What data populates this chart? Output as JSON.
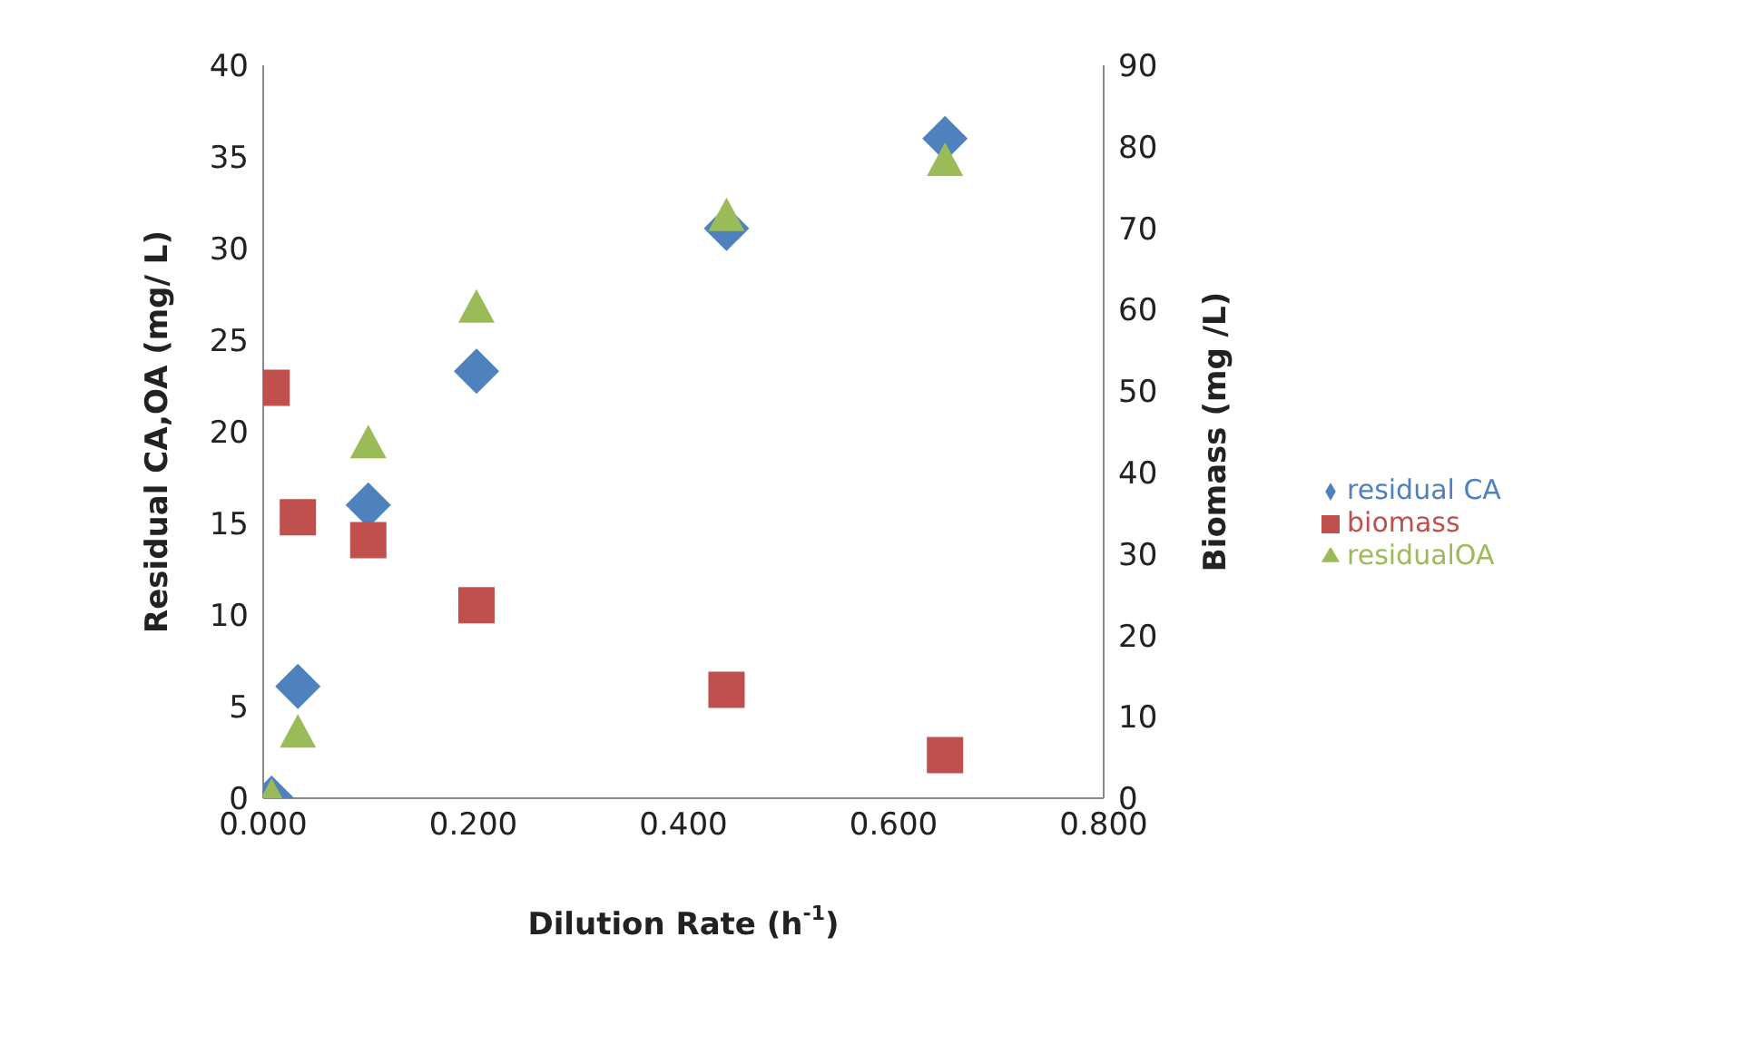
{
  "chart_data": {
    "type": "scatter",
    "xlabel": "Dilution Rate (h$^{-1}$)",
    "ylabel": "Residual CA,OA (mg/ L)",
    "y2label": "Biomass (mg /L)",
    "x": [
      0.008,
      0.033,
      0.1,
      0.203,
      0.441,
      0.649
    ],
    "series": [
      {
        "name": "residual CA",
        "color": "#4f81bd",
        "marker": "diamond",
        "values": [
          0,
          6.1,
          16.0,
          23.3,
          31.1,
          36.0
        ]
      },
      {
        "name": "biomass",
        "color": "#c0504d",
        "marker": "square",
        "axis": "y2",
        "values": [
          50.4,
          34.5,
          31.7,
          23.7,
          13.3,
          5.3
        ]
      },
      {
        "name": "residualOA",
        "color": "#9bbb59",
        "marker": "triangle",
        "values": [
          0,
          3.5,
          19.3,
          26.7,
          31.7,
          34.7
        ]
      }
    ],
    "xlim": [
      0,
      0.8
    ],
    "xticks": [
      {
        "value": 0,
        "label": "0.000"
      },
      {
        "value": 0.2,
        "label": "0.200"
      },
      {
        "value": 0.4,
        "label": "0.400"
      },
      {
        "value": 0.6,
        "label": "0.600"
      },
      {
        "value": 0.8,
        "label": "0.800"
      }
    ],
    "ylim": [
      0,
      40
    ],
    "yticks": [
      0,
      5,
      10,
      15,
      20,
      25,
      30,
      35,
      40
    ],
    "y2lim": [
      0,
      90
    ],
    "y2ticks": [
      0,
      10,
      20,
      30,
      40,
      50,
      60,
      70,
      80,
      90
    ],
    "grid": false,
    "legend": "right"
  }
}
